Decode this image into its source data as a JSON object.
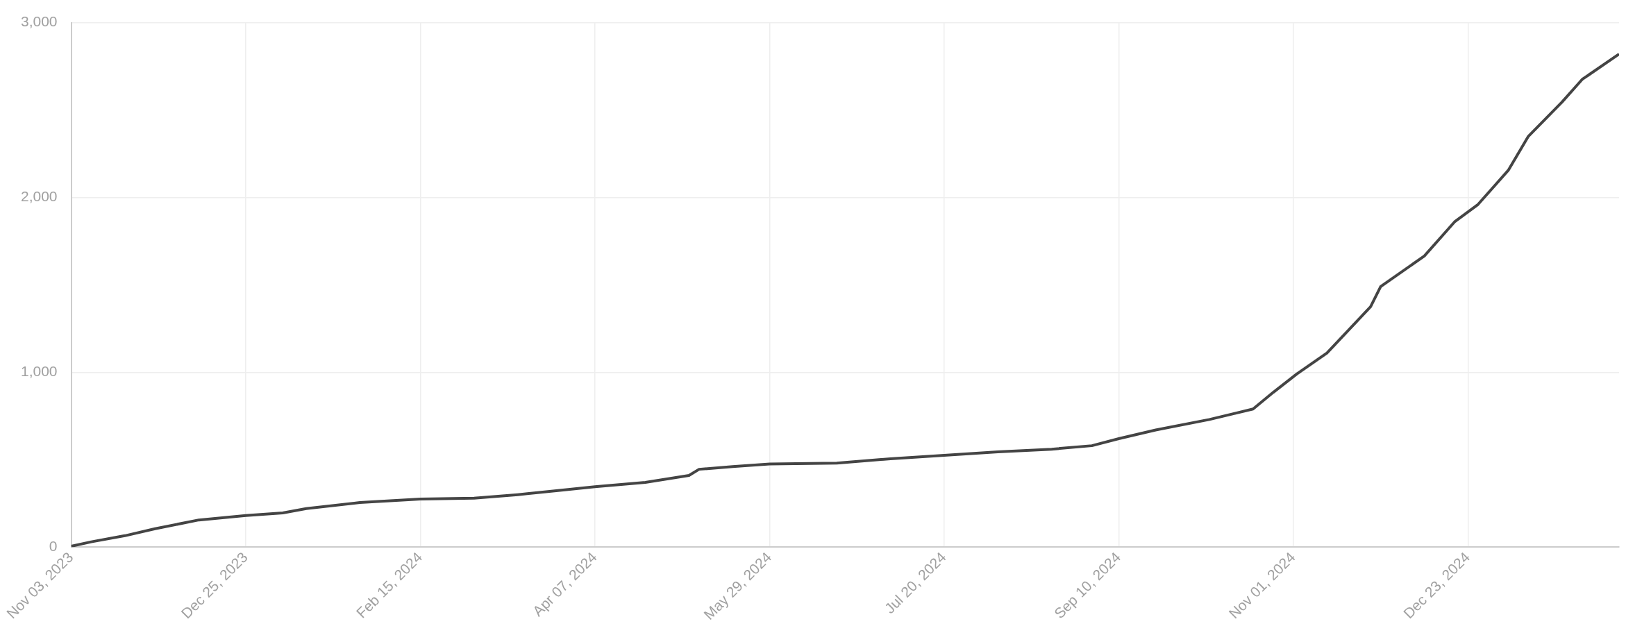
{
  "chart_data": {
    "type": "line",
    "x": [
      "2023-11-03",
      "2023-11-09",
      "2023-11-19",
      "2023-11-28",
      "2023-12-11",
      "2023-12-25",
      "2024-01-05",
      "2024-01-12",
      "2024-01-28",
      "2024-02-15",
      "2024-03-02",
      "2024-03-15",
      "2024-03-28",
      "2024-04-07",
      "2024-04-22",
      "2024-05-05",
      "2024-05-08",
      "2024-05-18",
      "2024-05-29",
      "2024-06-18",
      "2024-07-04",
      "2024-07-20",
      "2024-08-05",
      "2024-08-21",
      "2024-09-02",
      "2024-09-10",
      "2024-09-21",
      "2024-10-07",
      "2024-10-20",
      "2024-10-26",
      "2024-11-02",
      "2024-11-11",
      "2024-11-24",
      "2024-11-27",
      "2024-12-10",
      "2024-12-19",
      "2024-12-26",
      "2025-01-04",
      "2025-01-10",
      "2025-01-20",
      "2025-01-26",
      "2025-02-06"
    ],
    "series": [
      {
        "color": "#444444",
        "values": [
          5,
          30,
          65,
          105,
          155,
          180,
          195,
          220,
          255,
          275,
          280,
          300,
          325,
          345,
          370,
          410,
          445,
          460,
          475,
          480,
          505,
          525,
          545,
          560,
          580,
          620,
          670,
          730,
          790,
          885,
          990,
          1110,
          1375,
          1490,
          1665,
          1860,
          1960,
          2155,
          2350,
          2545,
          2675,
          2820
        ]
      }
    ],
    "xlim": [
      "2023-11-03",
      "2025-02-06"
    ],
    "xticks": [
      {
        "value": "2023-11-03",
        "label": "Nov 03, 2023"
      },
      {
        "value": "2023-12-25",
        "label": "Dec 25, 2023"
      },
      {
        "value": "2024-02-15",
        "label": "Feb 15, 2024"
      },
      {
        "value": "2024-04-07",
        "label": "Apr 07, 2024"
      },
      {
        "value": "2024-05-29",
        "label": "May 29, 2024"
      },
      {
        "value": "2024-07-20",
        "label": "Jul 20, 2024"
      },
      {
        "value": "2024-09-10",
        "label": "Sep 10, 2024"
      },
      {
        "value": "2024-11-01",
        "label": "Nov 01, 2024"
      },
      {
        "value": "2024-12-23",
        "label": "Dec 23, 2024"
      }
    ],
    "ylim": [
      0,
      3000
    ],
    "yticks": [
      0,
      {
        "value": 1000,
        "label": "1,000"
      },
      {
        "value": 2000,
        "label": "2,000"
      },
      {
        "value": 3000,
        "label": "3,000"
      }
    ],
    "grid": true,
    "legend": false,
    "marker": "none",
    "line_style": "solid"
  }
}
